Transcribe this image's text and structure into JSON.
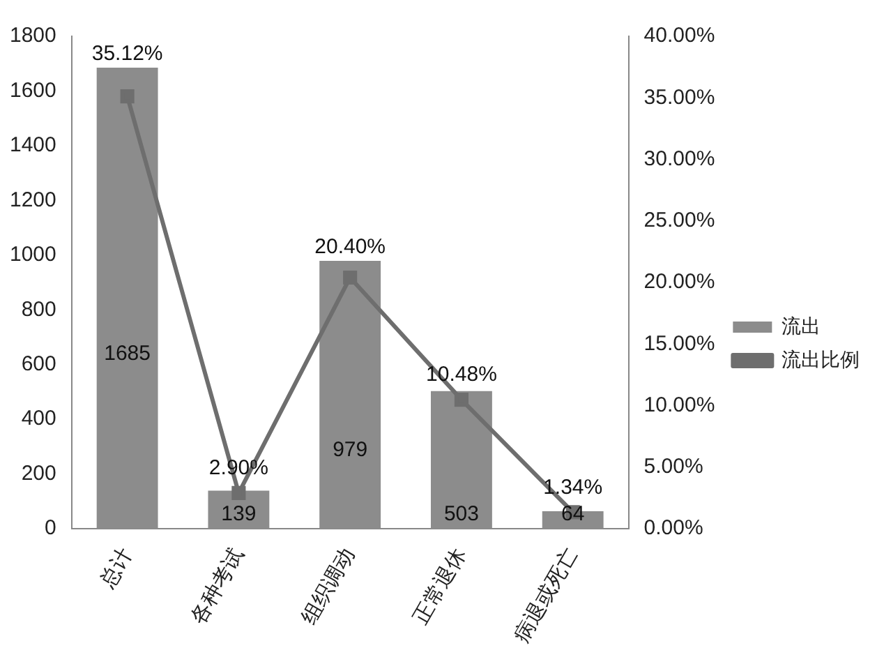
{
  "chart_data": {
    "type": "bar",
    "categories": [
      "总计",
      "各种考试",
      "组织调动",
      "正常退休",
      "病退或死亡"
    ],
    "series": [
      {
        "name": "流出",
        "color": "#8c8c8c",
        "values": [
          1685,
          139,
          979,
          503,
          64
        ],
        "value_labels": [
          "1685",
          "139",
          "979",
          "503",
          "64"
        ]
      },
      {
        "name": "流出比例",
        "type": "line",
        "axis": "y2",
        "color": "#6e6e6e",
        "marker": "square",
        "values": [
          35.12,
          2.9,
          20.4,
          10.48,
          1.34
        ],
        "value_labels": [
          "35.12%",
          "2.90%",
          "20.40%",
          "10.48%",
          "1.34%"
        ]
      }
    ],
    "ylim": [
      0,
      1800
    ],
    "yticks": [
      0,
      200,
      400,
      600,
      800,
      1000,
      1200,
      1400,
      1600,
      1800
    ],
    "y2lim": [
      0,
      40
    ],
    "y2ticks": [
      {
        "value": 0,
        "label": "0.00%"
      },
      {
        "value": 5,
        "label": "5.00%"
      },
      {
        "value": 10,
        "label": "10.00%"
      },
      {
        "value": 15,
        "label": "15.00%"
      },
      {
        "value": 20,
        "label": "20.00%"
      },
      {
        "value": 25,
        "label": "25.00%"
      },
      {
        "value": 30,
        "label": "30.00%"
      },
      {
        "value": 35,
        "label": "35.00%"
      },
      {
        "value": 40,
        "label": "40.00%"
      }
    ],
    "legend": "right",
    "grid": false
  }
}
